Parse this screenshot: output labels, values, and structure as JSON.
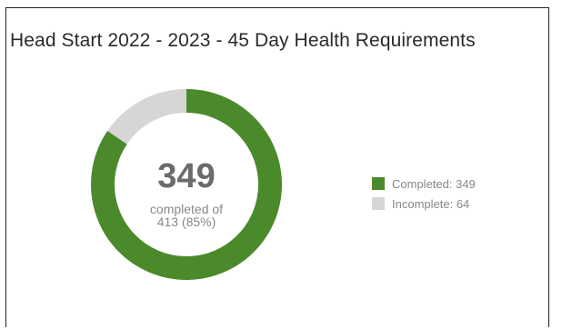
{
  "title": "Head Start 2022 - 2023 - 45 Day Health Requirements",
  "center": {
    "value": "349",
    "line1": "completed of",
    "line2": "413 (85%)"
  },
  "legend": {
    "completed_label": "Completed: 349",
    "incomplete_label": "Incomplete: 64"
  },
  "colors": {
    "completed": "#4a8a2a",
    "incomplete": "#d6d6d6"
  },
  "chart_data": {
    "type": "pie",
    "title": "Head Start 2022 - 2023 - 45 Day Health Requirements",
    "categories": [
      "Completed",
      "Incomplete"
    ],
    "values": [
      349,
      64
    ],
    "total": 413,
    "percent_completed": 85,
    "legend_placement": "right"
  }
}
